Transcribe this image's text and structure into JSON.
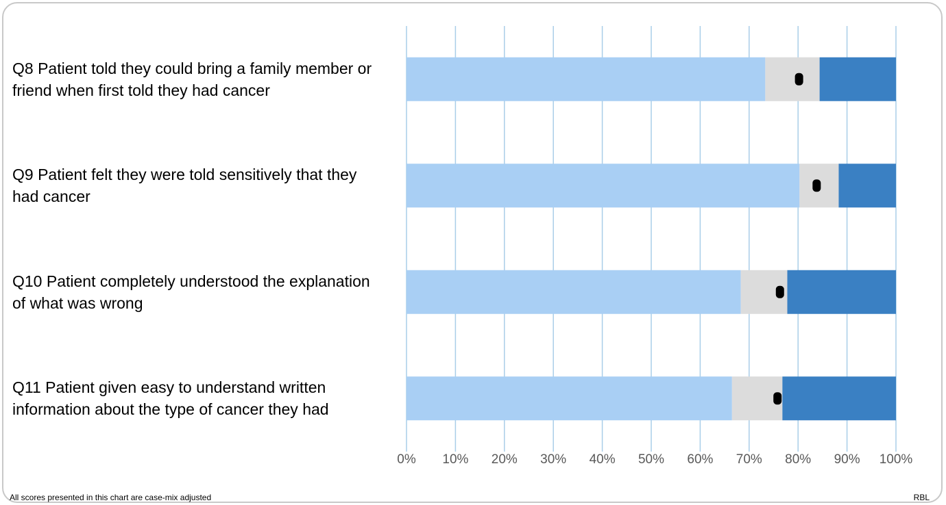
{
  "chart_data": {
    "type": "bar",
    "stacked": true,
    "orientation": "horizontal",
    "categories": [
      "Q8 Patient told they could bring a family member or friend when first told they had cancer",
      "Q9 Patient felt they were told sensitively that they had cancer",
      "Q10 Patient completely understood the explanation of what was wrong",
      "Q11 Patient given easy to understand written information about the type of cancer they had"
    ],
    "segments": [
      {
        "color": "#a9cff4",
        "start": [
          0,
          0,
          0,
          0
        ],
        "end": [
          73.3,
          80.3,
          68.3,
          66.5
        ]
      },
      {
        "color": "#dcdcdc",
        "start": [
          73.3,
          80.3,
          68.3,
          66.5
        ],
        "end": [
          84.4,
          88.3,
          77.8,
          76.8
        ]
      },
      {
        "color": "#3a80c3",
        "start": [
          84.4,
          88.3,
          77.8,
          76.8
        ],
        "end": [
          100,
          100,
          100,
          100
        ]
      }
    ],
    "scores": [
      80.2,
      83.8,
      76.3,
      75.8
    ],
    "xlim": [
      0,
      100
    ],
    "xticks": [
      "0%",
      "10%",
      "20%",
      "30%",
      "40%",
      "50%",
      "60%",
      "70%",
      "80%",
      "90%",
      "100%"
    ],
    "grid": true,
    "gridColor": "#a9cde8",
    "markerColor": "#000000"
  },
  "footnote": "All scores presented in this chart are case-mix adjusted",
  "code": "RBL"
}
